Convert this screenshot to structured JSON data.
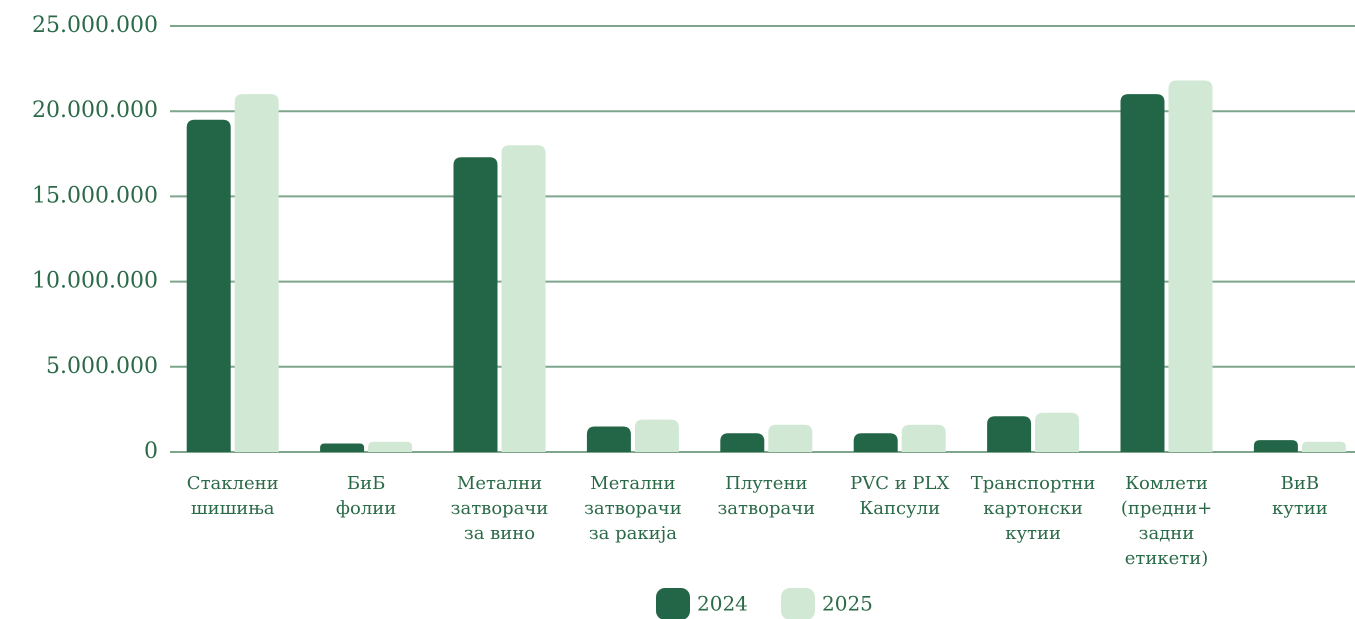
{
  "chart_data": {
    "type": "bar",
    "categories": [
      "Стаклени\nшишиња",
      "БиБ\nфолии",
      "Метални\nзатворачи\nза вино",
      "Метални\nзатворачи\nза ракија",
      "Плутени\nзатворачи",
      "PVC и PLX\nКапсули",
      "Транспортни\nкартонски\nкутии",
      "Комлети\n(предни+\nзадни\nетикети)",
      "ВиВ\nкутии"
    ],
    "series": [
      {
        "name": "2024",
        "color": "#236647",
        "values": [
          19500000,
          500000,
          17300000,
          1500000,
          1100000,
          1100000,
          2100000,
          21000000,
          700000
        ]
      },
      {
        "name": "2025",
        "color": "#d1e8d4",
        "values": [
          21000000,
          600000,
          18000000,
          1900000,
          1600000,
          1600000,
          2300000,
          21800000,
          600000
        ]
      }
    ],
    "ylim": [
      0,
      25000000
    ],
    "yticks": [
      0,
      {
        "value": 5000000,
        "label": "5.000.000"
      },
      {
        "value": 10000000,
        "label": "10.000.000"
      },
      {
        "value": 15000000,
        "label": "15.000.000"
      },
      {
        "value": 20000000,
        "label": "20.000.000"
      },
      {
        "value": 25000000,
        "label": "25.000.000"
      }
    ],
    "grid": true,
    "legend": "bottom"
  }
}
